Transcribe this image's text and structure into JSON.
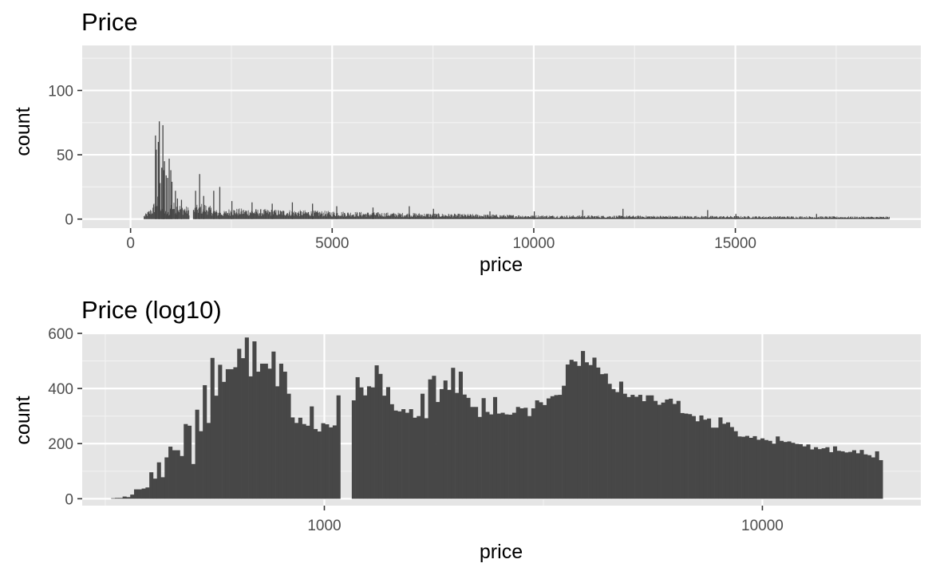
{
  "chart_data": [
    {
      "type": "bar",
      "title": "Price",
      "xlabel": "price",
      "ylabel": "count",
      "xscale": "linear",
      "xlim": [
        -1200,
        19600
      ],
      "ylim": [
        -7,
        135
      ],
      "xticks": [
        0,
        5000,
        10000,
        15000
      ],
      "yticks": [
        0,
        50,
        100
      ],
      "x_tick_labels": [
        "0",
        "5000",
        "10000",
        "15000"
      ],
      "y_tick_labels": [
        "0",
        "50",
        "100"
      ],
      "grid": true,
      "legend": "none",
      "bar_color": "#474747",
      "panel_bg": "#e5e5e5",
      "binwidth": 1,
      "gap": [
        1455,
        1545
      ],
      "x_range": [
        326,
        18823
      ],
      "peaks": [
        {
          "x": 605,
          "y": 65
        },
        {
          "x": 625,
          "y": 54
        },
        {
          "x": 675,
          "y": 60
        },
        {
          "x": 700,
          "y": 76
        },
        {
          "x": 720,
          "y": 28
        },
        {
          "x": 760,
          "y": 40
        },
        {
          "x": 789,
          "y": 73
        },
        {
          "x": 802,
          "y": 38
        },
        {
          "x": 828,
          "y": 45
        },
        {
          "x": 870,
          "y": 34
        },
        {
          "x": 905,
          "y": 32
        },
        {
          "x": 945,
          "y": 47
        },
        {
          "x": 985,
          "y": 38
        },
        {
          "x": 1013,
          "y": 29
        },
        {
          "x": 1100,
          "y": 22
        },
        {
          "x": 1150,
          "y": 16
        },
        {
          "x": 1250,
          "y": 15
        },
        {
          "x": 1600,
          "y": 22
        },
        {
          "x": 1700,
          "y": 35
        },
        {
          "x": 1800,
          "y": 18
        },
        {
          "x": 2050,
          "y": 22
        },
        {
          "x": 2200,
          "y": 25
        },
        {
          "x": 2500,
          "y": 14
        },
        {
          "x": 3000,
          "y": 13
        },
        {
          "x": 3500,
          "y": 12
        },
        {
          "x": 4000,
          "y": 13
        },
        {
          "x": 4500,
          "y": 12
        },
        {
          "x": 5100,
          "y": 10
        },
        {
          "x": 6000,
          "y": 9
        },
        {
          "x": 6900,
          "y": 10
        },
        {
          "x": 7500,
          "y": 8
        },
        {
          "x": 8900,
          "y": 6
        },
        {
          "x": 10000,
          "y": 6
        },
        {
          "x": 11200,
          "y": 7
        },
        {
          "x": 12200,
          "y": 8
        },
        {
          "x": 14300,
          "y": 7
        },
        {
          "x": 15000,
          "y": 4
        },
        {
          "x": 17000,
          "y": 4
        }
      ]
    },
    {
      "type": "bar",
      "title": "Price (log10)",
      "xlabel": "price",
      "ylabel": "count",
      "xscale": "log10",
      "xlim": [
        280,
        23000
      ],
      "ylim": [
        -25,
        600
      ],
      "xticks": [
        1000,
        10000
      ],
      "yticks": [
        0,
        200,
        400,
        600
      ],
      "x_tick_labels": [
        "1000",
        "10000"
      ],
      "y_tick_labels": [
        "0",
        "200",
        "400",
        "600"
      ],
      "grid": true,
      "legend": "none",
      "bar_color": "#474747",
      "panel_bg": "#e5e5e5",
      "bins": 200,
      "bin_range": [
        326,
        18823
      ],
      "values": [
        2,
        3,
        3,
        8,
        6,
        15,
        34,
        34,
        37,
        41,
        96,
        73,
        132,
        78,
        150,
        189,
        176,
        176,
        155,
        271,
        265,
        126,
        323,
        245,
        412,
        275,
        511,
        374,
        486,
        424,
        470,
        470,
        477,
        544,
        510,
        585,
        444,
        571,
        461,
        490,
        490,
        472,
        534,
        408,
        490,
        461,
        381,
        295,
        275,
        294,
        271,
        265,
        335,
        253,
        244,
        274,
        270,
        259,
        266,
        375,
        0,
        0,
        0,
        357,
        441,
        404,
        375,
        408,
        404,
        484,
        453,
        374,
        405,
        343,
        320,
        317,
        325,
        312,
        325,
        294,
        300,
        381,
        292,
        433,
        446,
        351,
        398,
        429,
        395,
        475,
        384,
        461,
        378,
        366,
        333,
        333,
        297,
        365,
        315,
        306,
        369,
        309,
        312,
        306,
        305,
        312,
        333,
        328,
        330,
        300,
        328,
        357,
        350,
        340,
        364,
        372,
        376,
        377,
        410,
        487,
        504,
        498,
        482,
        536,
        495,
        485,
        512,
        476,
        452,
        454,
        417,
        398,
        387,
        425,
        381,
        369,
        377,
        370,
        377,
        354,
        375,
        375,
        355,
        341,
        349,
        360,
        363,
        344,
        355,
        311,
        309,
        307,
        300,
        281,
        302,
        287,
        291,
        258,
        258,
        295,
        272,
        277,
        260,
        245,
        226,
        225,
        228,
        221,
        227,
        214,
        219,
        213,
        210,
        200,
        226,
        210,
        206,
        208,
        203,
        199,
        198,
        190,
        197,
        179,
        187,
        180,
        183,
        187,
        169,
        190,
        174,
        172,
        168,
        170,
        176,
        165,
        177,
        161,
        158,
        150,
        172,
        140
      ]
    }
  ]
}
